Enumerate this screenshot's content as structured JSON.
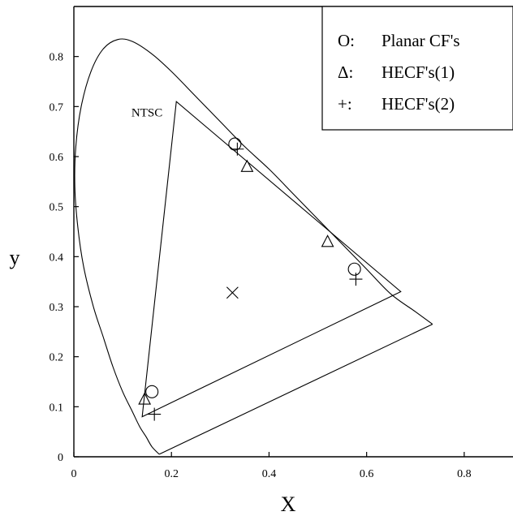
{
  "chart_data": {
    "type": "scatter",
    "title": "",
    "xlabel": "X",
    "ylabel": "y",
    "xlim": [
      0,
      0.9
    ],
    "ylim": [
      0,
      0.9
    ],
    "x_ticks": [
      0,
      0.2,
      0.4,
      0.6,
      0.8
    ],
    "x_tick_labels": [
      "0",
      "0.2",
      "0.4",
      "0.6",
      "0.8"
    ],
    "y_ticks": [
      0,
      0.1,
      0.2,
      0.3,
      0.4,
      0.5,
      0.6,
      0.7,
      0.8
    ],
    "y_tick_labels": [
      "0",
      "0.1",
      "0.2",
      "0.3",
      "0.4",
      "0.5",
      "0.6",
      "0.7",
      "0.8"
    ],
    "grid": false,
    "legend_position": "top-right",
    "legend": [
      {
        "symbol": "O:",
        "label": "Planar CF's",
        "marker": "circle"
      },
      {
        "symbol": "Δ:",
        "label": "HECF's(1)",
        "marker": "triangle"
      },
      {
        "symbol": "+:",
        "label": "HECF's(2)",
        "marker": "plus"
      }
    ],
    "spectral_locus": [
      [
        0.175,
        0.005
      ],
      [
        0.16,
        0.02
      ],
      [
        0.148,
        0.04
      ],
      [
        0.135,
        0.06
      ],
      [
        0.12,
        0.09
      ],
      [
        0.1,
        0.13
      ],
      [
        0.08,
        0.18
      ],
      [
        0.06,
        0.24
      ],
      [
        0.04,
        0.3
      ],
      [
        0.02,
        0.38
      ],
      [
        0.008,
        0.46
      ],
      [
        0.002,
        0.54
      ],
      [
        0.004,
        0.62
      ],
      [
        0.015,
        0.7
      ],
      [
        0.035,
        0.77
      ],
      [
        0.06,
        0.815
      ],
      [
        0.09,
        0.834
      ],
      [
        0.12,
        0.83
      ],
      [
        0.16,
        0.805
      ],
      [
        0.2,
        0.77
      ],
      [
        0.25,
        0.72
      ],
      [
        0.3,
        0.67
      ],
      [
        0.35,
        0.62
      ],
      [
        0.4,
        0.575
      ],
      [
        0.45,
        0.525
      ],
      [
        0.5,
        0.475
      ],
      [
        0.55,
        0.425
      ],
      [
        0.6,
        0.375
      ],
      [
        0.65,
        0.325
      ],
      [
        0.7,
        0.29
      ],
      [
        0.735,
        0.265
      ]
    ],
    "purple_line": [
      [
        0.735,
        0.265
      ],
      [
        0.175,
        0.005
      ]
    ],
    "ntsc_triangle": [
      [
        0.21,
        0.71
      ],
      [
        0.67,
        0.33
      ],
      [
        0.14,
        0.08
      ]
    ],
    "annotations": [
      {
        "text": "NTSC",
        "x": 0.118,
        "y": 0.68
      }
    ],
    "series": [
      {
        "name": "Planar CF's",
        "marker": "circle",
        "points": [
          [
            0.16,
            0.13
          ],
          [
            0.33,
            0.625
          ],
          [
            0.575,
            0.375
          ]
        ]
      },
      {
        "name": "HECF's(1)",
        "marker": "triangle",
        "points": [
          [
            0.145,
            0.115
          ],
          [
            0.355,
            0.58
          ],
          [
            0.52,
            0.43
          ]
        ]
      },
      {
        "name": "HECF's(2)",
        "marker": "plus",
        "points": [
          [
            0.165,
            0.085
          ],
          [
            0.335,
            0.615
          ],
          [
            0.578,
            0.355
          ]
        ]
      },
      {
        "marker": "cross",
        "points": [
          [
            0.325,
            0.328
          ]
        ]
      }
    ]
  }
}
